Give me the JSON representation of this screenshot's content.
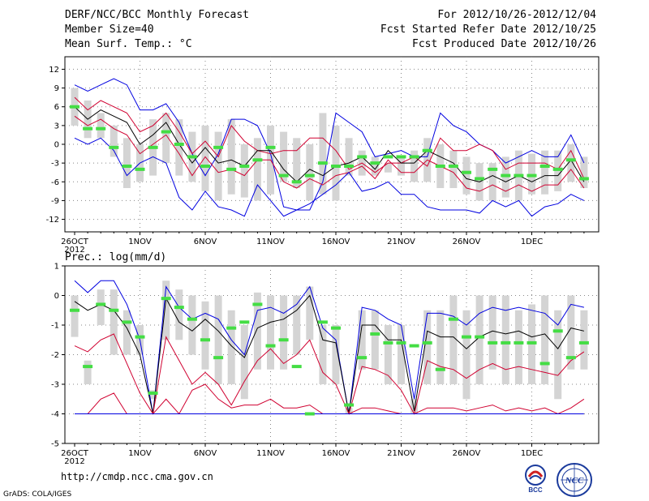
{
  "header": {
    "title": "DERF/NCC/BCC Monthly Forecast",
    "member": "Member Size=40",
    "variable": "Mean Surf. Temp.: °C",
    "period": "For 2012/10/26-2012/12/04",
    "started": "Fcst Started Refer Date 2012/10/25",
    "produced": "Fcst Produced Date 2012/10/26"
  },
  "footer": {
    "url": "http://cmdp.ncc.cma.gov.cn",
    "credit": "GrADS: COLA/IGES",
    "logo_bcc": "BCC",
    "logo_ncc": "NCC"
  },
  "colors": {
    "mean": "#000000",
    "spread": "#d00030",
    "extreme": "#0000e0",
    "box": "#d4d4d4",
    "median": "#44dd44",
    "grid": "#888888"
  },
  "x_ticks": [
    "26OCT",
    "1NOV",
    "6NOV",
    "11NOV",
    "16NOV",
    "21NOV",
    "26NOV",
    "1DEC"
  ],
  "x_year": "2012",
  "chart_data": [
    {
      "type": "line",
      "title": "Mean Surf. Temp.: °C",
      "ylim": [
        -14,
        14
      ],
      "yticks": [
        12,
        9,
        6,
        3,
        0,
        -3,
        -6,
        -9,
        -12
      ],
      "x": [
        1,
        2,
        3,
        4,
        5,
        6,
        7,
        8,
        9,
        10,
        11,
        12,
        13,
        14,
        15,
        16,
        17,
        18,
        19,
        20,
        21,
        22,
        23,
        24,
        25,
        26,
        27,
        28,
        29,
        30,
        31,
        32,
        33,
        34,
        35,
        36,
        37,
        38,
        39,
        40
      ],
      "series": [
        {
          "name": "max",
          "values": [
            9.5,
            8.5,
            9.5,
            10.5,
            9.5,
            5.5,
            5.5,
            6.5,
            3.5,
            -1.5,
            -5,
            -1.5,
            4,
            4,
            3,
            -1.5,
            -10,
            -10.5,
            -10.5,
            -6,
            5,
            3.5,
            2,
            -2,
            -1.5,
            -1,
            -2,
            -2,
            5,
            3,
            2,
            0,
            -1,
            -3,
            -2,
            -1,
            -2,
            -2,
            1.5,
            -3
          ]
        },
        {
          "name": "upper",
          "values": [
            7.5,
            5.5,
            7,
            6,
            5,
            2,
            3,
            5,
            2,
            -1.5,
            0.5,
            -2,
            3,
            0.5,
            -1,
            -1.5,
            -1,
            -1,
            1,
            1,
            -1,
            -4,
            -3,
            -4.5,
            -3,
            -3,
            -2,
            -3.5,
            1,
            -1,
            -1,
            0,
            -1,
            -4,
            -3,
            -3,
            -3,
            -4,
            -1,
            -5.5
          ]
        },
        {
          "name": "mean",
          "values": [
            6,
            4,
            5.5,
            4.5,
            3.5,
            0,
            1.5,
            3.5,
            0,
            -3,
            -0.5,
            -3,
            -2.5,
            -3.5,
            -1,
            -1,
            -4,
            -6,
            -4,
            -5,
            -3.5,
            -3,
            -2,
            -4,
            -1,
            -3,
            -3,
            -1,
            -2,
            -3,
            -5.5,
            -6,
            -5,
            -6,
            -5,
            -6,
            -5,
            -5,
            -2.5,
            -6
          ]
        },
        {
          "name": "lower",
          "values": [
            4.5,
            3,
            4,
            2.5,
            1.5,
            -1.5,
            0,
            1.5,
            -1.5,
            -5,
            -2,
            -4.5,
            -4,
            -5,
            -2.5,
            -2.5,
            -6,
            -7,
            -5.5,
            -6.5,
            -5,
            -4.5,
            -3.5,
            -5.5,
            -2.5,
            -4.5,
            -4.5,
            -2.5,
            -3.5,
            -4.5,
            -7,
            -7.5,
            -6.5,
            -7.5,
            -6.5,
            -7.5,
            -6.5,
            -6.5,
            -4,
            -7
          ]
        },
        {
          "name": "min",
          "values": [
            1,
            0,
            1,
            -1,
            -5,
            -3,
            -2,
            -3,
            -8.5,
            -10.5,
            -7.5,
            -10,
            -10.5,
            -11.5,
            -6.5,
            -9,
            -11.5,
            -10.5,
            -9.5,
            -8,
            -6.5,
            -4.5,
            -7.5,
            -7,
            -6,
            -8,
            -8,
            -10,
            -10.5,
            -10.5,
            -10.5,
            -11,
            -9,
            -10,
            -9,
            -11.5,
            -10,
            -9.5,
            -8,
            -9
          ]
        }
      ],
      "box_low": [
        3,
        1,
        1,
        -2,
        -7,
        -6,
        -5,
        -3,
        -5,
        -6,
        -7.5,
        -9,
        -8,
        -8.5,
        -9,
        -8,
        -6,
        -7,
        -9,
        -8,
        -9,
        -5,
        -5,
        -5,
        -4.5,
        -5,
        -6,
        -6,
        -7,
        -7,
        -8,
        -9,
        -9,
        -8.5,
        -9,
        -8,
        -8,
        -7.5,
        -6,
        -7
      ],
      "box_high": [
        9,
        7,
        5,
        3,
        1,
        0,
        4,
        5,
        4,
        2,
        3,
        2,
        4,
        0,
        1,
        3,
        2,
        1,
        0,
        5,
        3,
        1,
        -1,
        -2,
        -3,
        -2,
        -1,
        1,
        0,
        -1,
        -2,
        -3,
        -3,
        -2,
        -1,
        -1.5,
        -1,
        -1,
        0,
        -2
      ],
      "median": [
        6,
        2.5,
        2.5,
        -0.5,
        -3.5,
        -4,
        -0.5,
        2,
        0,
        -2,
        -3.5,
        -0.5,
        -4,
        -3.5,
        -2.5,
        -0.5,
        -5,
        -6,
        -5,
        -3,
        -3.5,
        -3.5,
        -2,
        -3,
        -2,
        -2,
        -2,
        -1,
        -3.5,
        -3.5,
        -4.5,
        -5.5,
        -4,
        -5,
        -5,
        -5,
        -3.5,
        -4,
        -2.5,
        -5.5
      ]
    },
    {
      "type": "line",
      "title": "Prec.: log(mm/d)",
      "ylim": [
        -5,
        1
      ],
      "yticks": [
        1,
        0,
        -1,
        -2,
        -3,
        -4,
        -5
      ],
      "x": [
        1,
        2,
        3,
        4,
        5,
        6,
        7,
        8,
        9,
        10,
        11,
        12,
        13,
        14,
        15,
        16,
        17,
        18,
        19,
        20,
        21,
        22,
        23,
        24,
        25,
        26,
        27,
        28,
        29,
        30,
        31,
        32,
        33,
        34,
        35,
        36,
        37,
        38,
        39,
        40
      ],
      "series": [
        {
          "name": "max",
          "values": [
            0.5,
            0.1,
            0.5,
            0.5,
            -0.3,
            -1.5,
            -4,
            0.3,
            -0.4,
            -0.8,
            -0.6,
            -0.8,
            -1.5,
            -2,
            -0.5,
            -0.4,
            -0.6,
            -0.3,
            0.3,
            -1.1,
            -1.5,
            -4,
            -0.4,
            -0.5,
            -0.8,
            -1,
            -3.5,
            -0.6,
            -0.6,
            -0.7,
            -1,
            -0.6,
            -0.4,
            -0.5,
            -0.4,
            -0.5,
            -0.6,
            -1,
            -0.3,
            -0.4
          ]
        },
        {
          "name": "mean",
          "values": [
            -0.2,
            -0.5,
            -0.3,
            -0.5,
            -1.1,
            -2,
            -4,
            -0.1,
            -0.9,
            -1.2,
            -0.8,
            -1.2,
            -1.7,
            -2.1,
            -1.1,
            -0.9,
            -0.8,
            -0.5,
            0,
            -1.5,
            -1.6,
            -4,
            -1,
            -1,
            -1.5,
            -1.5,
            -3.9,
            -1.2,
            -1.4,
            -1.4,
            -1.8,
            -1.4,
            -1.2,
            -1.3,
            -1.2,
            -1.4,
            -1.3,
            -1.8,
            -1.1,
            -1.2
          ]
        },
        {
          "name": "upper",
          "values": [
            -1.7,
            -1.9,
            -1.5,
            -1.3,
            -2.3,
            -3.3,
            -4,
            -1.4,
            -2.2,
            -3,
            -2.6,
            -3,
            -3.7,
            -2.9,
            -2.2,
            -1.8,
            -2.3,
            -2,
            -1.5,
            -2.6,
            -3,
            -4,
            -2.4,
            -2.5,
            -2.7,
            -3.2,
            -4,
            -2.2,
            -2.4,
            -2.5,
            -2.8,
            -2.5,
            -2.3,
            -2.5,
            -2.4,
            -2.5,
            -2.6,
            -2.7,
            -2.2,
            -1.9
          ]
        },
        {
          "name": "lower",
          "values": [
            -4,
            -4,
            -3.5,
            -3.3,
            -4,
            -4,
            -4,
            -3.5,
            -4,
            -3.2,
            -3,
            -3.5,
            -3.8,
            -3.7,
            -3.7,
            -3.5,
            -3.8,
            -3.8,
            -3.7,
            -4,
            -4,
            -4,
            -3.8,
            -3.8,
            -3.9,
            -4,
            -4,
            -3.8,
            -3.8,
            -3.8,
            -3.9,
            -3.8,
            -3.7,
            -3.9,
            -3.8,
            -3.9,
            -3.8,
            -4,
            -3.8,
            -3.5
          ]
        },
        {
          "name": "min",
          "values": [
            -4,
            -4,
            -4,
            -4,
            -4,
            -4,
            -4,
            -4,
            -4,
            -4,
            -4,
            -4,
            -4,
            -4,
            -4,
            -4,
            -4,
            -4,
            -4,
            -4,
            -4,
            -4,
            -4,
            -4,
            -4,
            -4,
            -4,
            -4,
            -4,
            -4,
            -4,
            -4,
            -4,
            -4,
            -4,
            -4,
            -4,
            -4,
            -4,
            -4
          ]
        }
      ],
      "box_low": [
        -1.4,
        -3,
        -1,
        -2,
        -2,
        -2,
        -3.5,
        -1.5,
        -1.5,
        -2,
        -2.5,
        -3,
        -3,
        -3.5,
        -2.5,
        -2.5,
        -2.5,
        -2,
        -1.5,
        -3,
        -3,
        -4,
        -2.5,
        -2.5,
        -3,
        -3,
        -4,
        -3,
        -3,
        -3,
        -3.5,
        -3,
        -2.5,
        -3,
        -3,
        -3,
        -3,
        -3.5,
        -2.5,
        -2.5
      ],
      "box_high": [
        0,
        -2.2,
        0.2,
        0.2,
        -0.5,
        -1,
        -3.2,
        0.5,
        0.2,
        0,
        -0.2,
        0,
        -0.5,
        -1,
        0.1,
        0,
        0,
        0,
        0.3,
        -1,
        -1,
        -3.8,
        -0.5,
        -0.5,
        -1,
        -1,
        -3.5,
        -0.5,
        -0.5,
        0,
        -0.5,
        0,
        0,
        0,
        -0.5,
        -0.3,
        0,
        -0.5,
        0,
        -0.5
      ],
      "median": [
        -0.5,
        -2.4,
        -0.3,
        -0.5,
        -0.9,
        -1.4,
        -3.3,
        -0.1,
        -0.4,
        -0.8,
        -1.5,
        -2.1,
        -1.1,
        -0.9,
        -0.3,
        -1.7,
        -1.5,
        -2.4,
        -4,
        -0.9,
        -1.1,
        -3.7,
        -2.1,
        -1.3,
        -1.6,
        -1.6,
        -1.7,
        -1.6,
        -2.5,
        -0.8,
        -1.4,
        -1.4,
        -1.6,
        -1.6,
        -1.6,
        -1.6,
        -2.3,
        -1.2,
        -2.1,
        -1.6
      ]
    }
  ]
}
